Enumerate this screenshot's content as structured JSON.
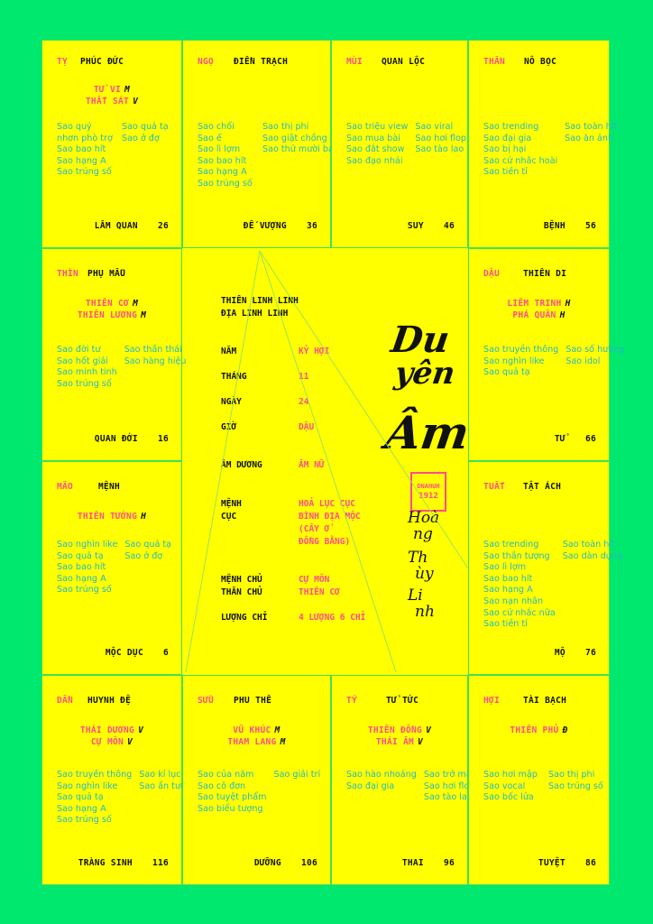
{
  "colors": {
    "background": "#00e86e",
    "board": "#ffff00",
    "branch": "#ff4d8d",
    "minor_stars": "#25b8c4",
    "text": "#111111"
  },
  "cells": [
    {
      "branch": "Tỵ",
      "palace": "Phúc Đức",
      "main_stars": [
        {
          "name": "Tử Vi",
          "grade": "M"
        },
        {
          "name": "Thất Sát",
          "grade": "V"
        }
      ],
      "minor_left": [
        "Sao quý",
        "nhơn phò trợ",
        "Sao bao hít",
        "Sao hạng A",
        "Sao trúng số"
      ],
      "minor_right": [
        "Sao quả tạ",
        "Sao ở đợ"
      ],
      "stage": "Lâm Quan",
      "number": "26"
    },
    {
      "branch": "Ngọ",
      "palace": "Điền Trạch",
      "main_stars": [],
      "minor_left": [
        "Sao chổi",
        "Sao ế",
        "Sao lì lợm",
        "Sao bao hít",
        "Sao hạng A",
        "Sao trúng số"
      ],
      "minor_right": [
        "Sao thị phi",
        "Sao giật chồng",
        "Sao thứ mười ba"
      ],
      "stage": "Đế Vượng",
      "number": "36"
    },
    {
      "branch": "Mùi",
      "palace": "Quan Lộc",
      "main_stars": [],
      "minor_left": [
        "Sao triệu view",
        "Sao mua bài",
        "Sao đắt show",
        "Sao đạo nhái"
      ],
      "minor_right": [
        "Sao viral",
        "Sao hơi flop",
        "Sao tào lao"
      ],
      "stage": "Suy",
      "number": "46"
    },
    {
      "branch": "Thân",
      "palace": "Nô Bọc",
      "main_stars": [],
      "minor_left": [
        "Sao trending",
        "Sao đại gia",
        "Sao bị hại",
        "Sao cứ nhắc hoài",
        "Sao tiền tỉ"
      ],
      "minor_right": [
        "Sao toàn hit",
        "Sao ăn ảnh"
      ],
      "stage": "Bệnh",
      "number": "56"
    },
    {
      "branch": "Thìn",
      "palace": "Phụ Mẫu",
      "main_stars": [
        {
          "name": "Thiên Cơ",
          "grade": "M"
        },
        {
          "name": "Thiên Lương",
          "grade": "M"
        }
      ],
      "minor_left": [
        "Sao đời tư",
        "Sao hốt giải",
        "Sao minh tinh",
        "Sao trúng số"
      ],
      "minor_right": [
        "Sao thần thái",
        "Sao hàng hiệu"
      ],
      "stage": "Quan Đới",
      "number": "16"
    },
    {
      "branch": "Dậu",
      "palace": "Thiên Di",
      "main_stars": [
        {
          "name": "Liêm Trinh",
          "grade": "H"
        },
        {
          "name": "Phá Quân",
          "grade": "H"
        }
      ],
      "minor_left": [
        "Sao truyền thông",
        "Sao nghìn like",
        "Sao quả tạ"
      ],
      "minor_right": [
        "Sao số hường",
        "Sao idol"
      ],
      "stage": "Tử",
      "number": "66"
    },
    {
      "branch": "Mão",
      "palace": "Mệnh",
      "main_stars": [
        {
          "name": "Thiên Tướng",
          "grade": "H"
        }
      ],
      "minor_left": [
        "Sao nghìn like",
        "Sao quả tạ",
        "Sao bao hít",
        "Sao hạng A",
        "Sao trúng số"
      ],
      "minor_right": [
        "Sao quả tạ",
        "Sao ở đợ"
      ],
      "stage": "Mộc Dục",
      "number": "6"
    },
    {
      "branch": "Tuất",
      "palace": "Tật Ách",
      "main_stars": [],
      "minor_left": [
        "Sao trending",
        "Sao thần tượng",
        "Sao lì lợm",
        "Sao bao hít",
        "Sao hạng A",
        "Sao nạn nhân",
        "Sao cứ nhắc nữa",
        "Sao tiền tỉ"
      ],
      "minor_right": [
        "Sao toàn hit",
        "Sao dàn dựng"
      ],
      "stage": "Mộ",
      "number": "76"
    },
    {
      "branch": "Dần",
      "palace": "Huynh Đệ",
      "main_stars": [
        {
          "name": "Thái Dương",
          "grade": "V"
        },
        {
          "name": "Cự Môn",
          "grade": "V"
        }
      ],
      "minor_left": [
        "Sao truyền thông",
        "Sao nghìn like",
        "Sao quả tạ",
        "Sao hạng A",
        "Sao trúng số"
      ],
      "minor_right": [
        "Sao kỉ lục",
        "Sao ấn tượng"
      ],
      "stage": "Tràng Sinh",
      "number": "116"
    },
    {
      "branch": "Sửu",
      "palace": "Phu Thê",
      "main_stars": [
        {
          "name": "Vũ Khúc",
          "grade": "M"
        },
        {
          "name": "Tham Lang",
          "grade": "M"
        }
      ],
      "minor_left": [
        "Sao của năm",
        "Sao cô đơn",
        "Sao tuyệt phẩm",
        "Sao biểu tượng"
      ],
      "minor_right": [
        "Sao giải trí"
      ],
      "stage": "Dưỡng",
      "number": "106"
    },
    {
      "branch": "Tý",
      "palace": "Tử Tức",
      "main_stars": [
        {
          "name": "Thiên Đồng",
          "grade": "V"
        },
        {
          "name": "Thái Âm",
          "grade": "V"
        }
      ],
      "minor_left": [
        "Sao hào nhoáng",
        "Sao đại gia"
      ],
      "minor_right": [
        "Sao trở mặt",
        "Sao hơi flop",
        "Sao tào lao"
      ],
      "stage": "Thai",
      "number": "96"
    },
    {
      "branch": "Hợi",
      "palace": "Tài Bạch",
      "main_stars": [
        {
          "name": "Thiên Phủ",
          "grade": "Đ"
        }
      ],
      "minor_left": [
        "Sao hơi mập",
        "Sao vocal",
        "Sao bốc lửa"
      ],
      "minor_right": [
        "Sao thị phi",
        "Sao trúng số"
      ],
      "stage": "Tuyệt",
      "number": "86"
    }
  ],
  "center": {
    "header": [
      "Thiên Linh Linh",
      "Địa Linh Linh"
    ],
    "rows": [
      {
        "label": [
          "Năm"
        ],
        "value": [
          "Kỷ Hợi"
        ]
      },
      {
        "label": [
          "Tháng"
        ],
        "value": [
          "11"
        ]
      },
      {
        "label": [
          "Ngày"
        ],
        "value": [
          "24"
        ]
      },
      {
        "label": [
          "Giờ"
        ],
        "value": [
          "Dậu"
        ]
      },
      {
        "label": [
          "Âm Dương"
        ],
        "value": [
          "Âm Nữ"
        ]
      },
      {
        "label": [
          "Mệnh",
          "Cục"
        ],
        "value": [
          "Hoả Lục Cục",
          "Bình Địa Mộc",
          "(Cây ở",
          "Đồng Bằng)"
        ]
      },
      {
        "label": [
          "Mệnh Chủ",
          "Thân Chủ"
        ],
        "value": [
          "Cự Môn",
          "Thiên Cơ"
        ]
      },
      {
        "label": [
          "Lượng Chỉ"
        ],
        "value": [
          "4 Lượng 6 Chỉ"
        ]
      }
    ],
    "title_lines": [
      "Du",
      "yên",
      "Âm"
    ],
    "signature_lines": [
      "Hoà",
      "ng",
      "Th",
      "ùy",
      "Li",
      "nh"
    ],
    "stamp": [
      "DNAHUH",
      "1912"
    ]
  }
}
